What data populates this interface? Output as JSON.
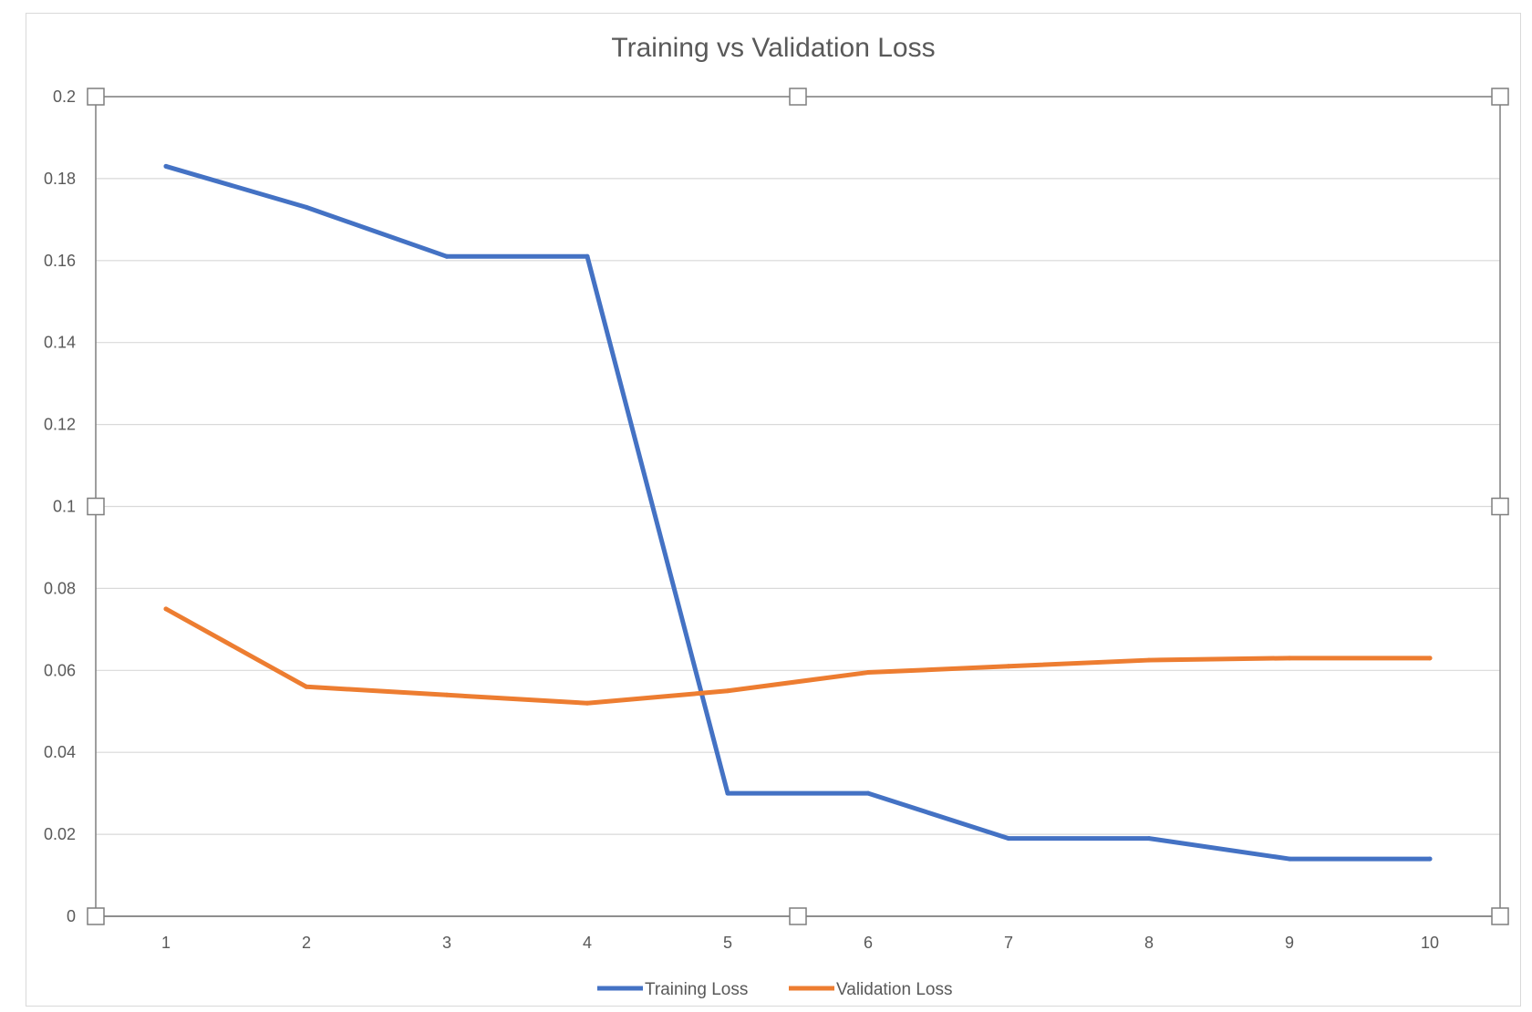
{
  "chart_data": {
    "type": "line",
    "title": "Training vs Validation Loss",
    "xlabel": "",
    "ylabel": "",
    "categories": [
      "1",
      "2",
      "3",
      "4",
      "5",
      "6",
      "7",
      "8",
      "9",
      "10"
    ],
    "y_ticks": [
      "0",
      "0.02",
      "0.04",
      "0.06",
      "0.08",
      "0.1",
      "0.12",
      "0.14",
      "0.16",
      "0.18",
      "0.2"
    ],
    "ylim": [
      0,
      0.2
    ],
    "grid": true,
    "legend_position": "bottom",
    "series": [
      {
        "name": "Training Loss",
        "color": "#4472C4",
        "values": [
          0.183,
          0.173,
          0.161,
          0.161,
          0.03,
          0.03,
          0.019,
          0.019,
          0.014,
          0.014
        ]
      },
      {
        "name": "Validation Loss",
        "color": "#ED7D31",
        "values": [
          0.075,
          0.056,
          0.054,
          0.052,
          0.055,
          0.0595,
          0.061,
          0.0625,
          0.063,
          0.063
        ]
      }
    ]
  }
}
